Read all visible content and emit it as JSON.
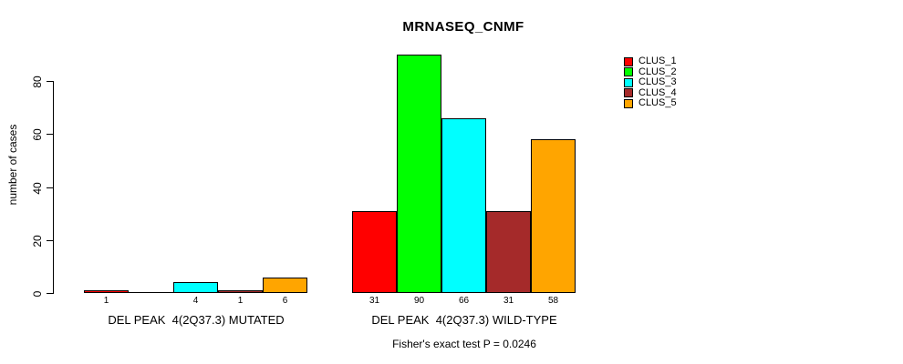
{
  "title": "MRNASEQ_CNMF",
  "ylabel": "number of cases",
  "footer": "Fisher's exact test P = 0.0246",
  "legend": {
    "items": [
      {
        "label": "CLUS_1",
        "color": "#FF0000"
      },
      {
        "label": "CLUS_2",
        "color": "#00FF00"
      },
      {
        "label": "CLUS_3",
        "color": "#00FFFF"
      },
      {
        "label": "CLUS_4",
        "color": "#A52A2A"
      },
      {
        "label": "CLUS_5",
        "color": "#FFA500"
      }
    ]
  },
  "chart_data": {
    "type": "bar",
    "title": "MRNASEQ_CNMF",
    "xlabel": "",
    "ylabel": "number of cases",
    "ylim": [
      0,
      90
    ],
    "yticks": [
      0,
      20,
      40,
      60,
      80
    ],
    "grid": false,
    "legend_position": "right-of-plot-top",
    "series_names": [
      "CLUS_1",
      "CLUS_2",
      "CLUS_3",
      "CLUS_4",
      "CLUS_5"
    ],
    "series_colors": [
      "#FF0000",
      "#00FF00",
      "#00FFFF",
      "#A52A2A",
      "#FFA500"
    ],
    "groups": [
      {
        "label": "DEL PEAK  4(2Q37.3) MUTATED",
        "values": [
          1,
          0,
          4,
          1,
          6
        ]
      },
      {
        "label": "DEL PEAK  4(2Q37.3) WILD-TYPE",
        "values": [
          31,
          90,
          66,
          31,
          58
        ]
      }
    ],
    "bar_value_labels_shown": true,
    "annotation": "Fisher's exact test P = 0.0246"
  }
}
